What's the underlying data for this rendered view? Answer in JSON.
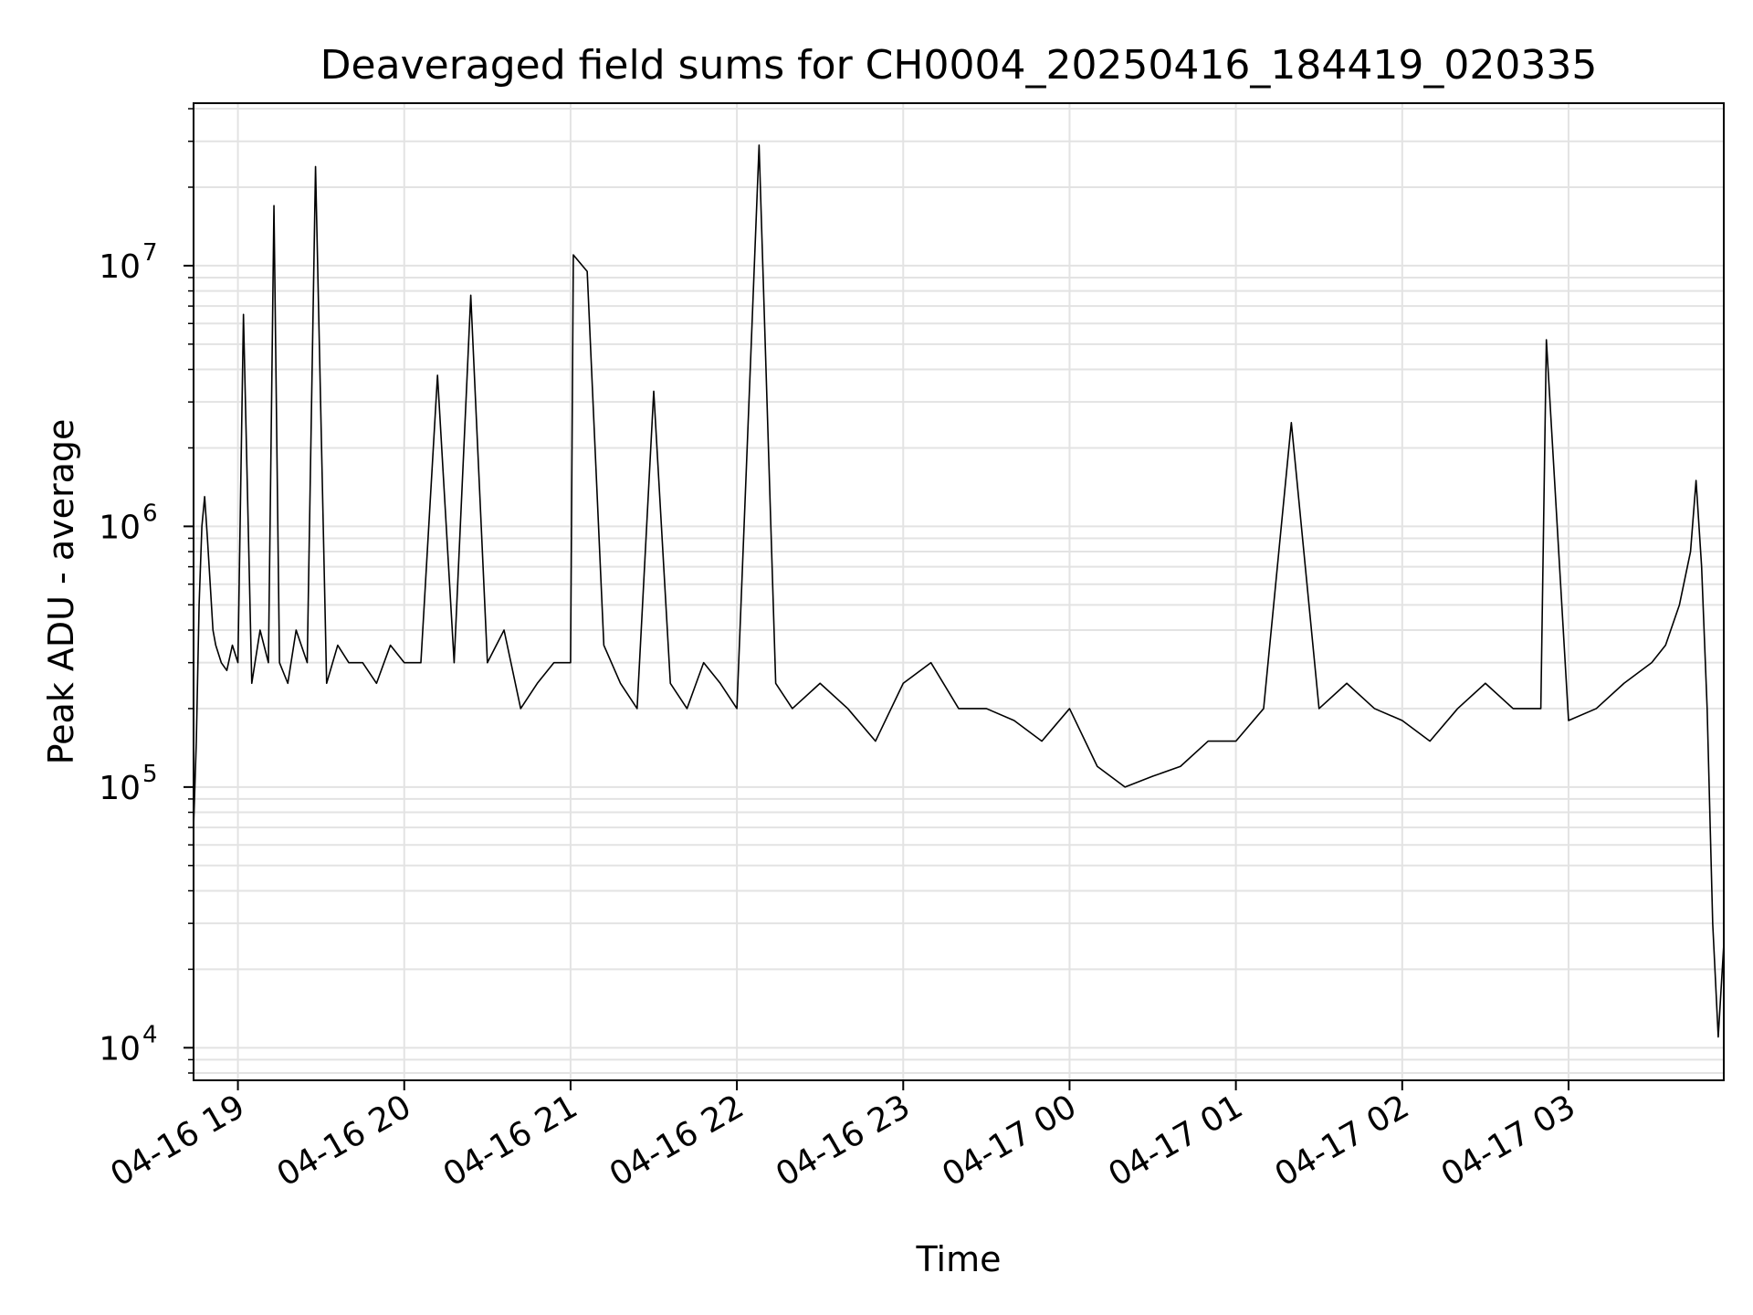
{
  "chart_data": {
    "type": "line",
    "title": "Deaveraged field sums for CH0004_20250416_184419_020335",
    "xlabel": "Time",
    "ylabel": "Peak ADU - average",
    "yscale": "log",
    "grid": true,
    "line_color": "#000000",
    "grid_color": "#e3e3e3",
    "xlim": [
      "2025-04-16 18:44",
      "2025-04-17 03:56"
    ],
    "ylim": [
      7500,
      42000000
    ],
    "x_ticks": [
      {
        "value": "2025-04-16 19:00",
        "label": "04-16 19"
      },
      {
        "value": "2025-04-16 20:00",
        "label": "04-16 20"
      },
      {
        "value": "2025-04-16 21:00",
        "label": "04-16 21"
      },
      {
        "value": "2025-04-16 22:00",
        "label": "04-16 22"
      },
      {
        "value": "2025-04-16 23:00",
        "label": "04-16 23"
      },
      {
        "value": "2025-04-17 00:00",
        "label": "04-17 00"
      },
      {
        "value": "2025-04-17 01:00",
        "label": "04-17 01"
      },
      {
        "value": "2025-04-17 02:00",
        "label": "04-17 02"
      },
      {
        "value": "2025-04-17 03:00",
        "label": "04-17 03"
      }
    ],
    "y_ticks": [
      {
        "value": 10000,
        "base": "10",
        "exp": "4"
      },
      {
        "value": 100000,
        "base": "10",
        "exp": "5"
      },
      {
        "value": 1000000,
        "base": "10",
        "exp": "6"
      },
      {
        "value": 10000000,
        "base": "10",
        "exp": "7"
      }
    ],
    "series": [
      {
        "x": [
          "2025-04-16 18:44",
          "2025-04-16 18:45",
          "2025-04-16 18:46",
          "2025-04-16 18:47",
          "2025-04-16 18:48",
          "2025-04-16 18:49",
          "2025-04-16 18:50",
          "2025-04-16 18:51",
          "2025-04-16 18:52",
          "2025-04-16 18:54",
          "2025-04-16 18:56",
          "2025-04-16 18:58",
          "2025-04-16 19:00",
          "2025-04-16 19:02",
          "2025-04-16 19:05",
          "2025-04-16 19:08",
          "2025-04-16 19:11",
          "2025-04-16 19:13",
          "2025-04-16 19:15",
          "2025-04-16 19:18",
          "2025-04-16 19:21",
          "2025-04-16 19:25",
          "2025-04-16 19:28",
          "2025-04-16 19:32",
          "2025-04-16 19:36",
          "2025-04-16 19:40",
          "2025-04-16 19:45",
          "2025-04-16 19:50",
          "2025-04-16 19:55",
          "2025-04-16 20:00",
          "2025-04-16 20:06",
          "2025-04-16 20:12",
          "2025-04-16 20:18",
          "2025-04-16 20:24",
          "2025-04-16 20:30",
          "2025-04-16 20:36",
          "2025-04-16 20:42",
          "2025-04-16 20:48",
          "2025-04-16 20:54",
          "2025-04-16 21:00",
          "2025-04-16 21:01",
          "2025-04-16 21:06",
          "2025-04-16 21:12",
          "2025-04-16 21:18",
          "2025-04-16 21:24",
          "2025-04-16 21:30",
          "2025-04-16 21:36",
          "2025-04-16 21:42",
          "2025-04-16 21:48",
          "2025-04-16 21:54",
          "2025-04-16 22:00",
          "2025-04-16 22:08",
          "2025-04-16 22:14",
          "2025-04-16 22:20",
          "2025-04-16 22:30",
          "2025-04-16 22:40",
          "2025-04-16 22:50",
          "2025-04-16 23:00",
          "2025-04-16 23:10",
          "2025-04-16 23:20",
          "2025-04-16 23:30",
          "2025-04-16 23:40",
          "2025-04-16 23:50",
          "2025-04-17 00:00",
          "2025-04-17 00:10",
          "2025-04-17 00:20",
          "2025-04-17 00:30",
          "2025-04-17 00:40",
          "2025-04-17 00:50",
          "2025-04-17 01:00",
          "2025-04-17 01:10",
          "2025-04-17 01:20",
          "2025-04-17 01:30",
          "2025-04-17 01:40",
          "2025-04-17 01:50",
          "2025-04-17 02:00",
          "2025-04-17 02:10",
          "2025-04-17 02:20",
          "2025-04-17 02:30",
          "2025-04-17 02:40",
          "2025-04-17 02:50",
          "2025-04-17 02:52",
          "2025-04-17 03:00",
          "2025-04-17 03:10",
          "2025-04-17 03:20",
          "2025-04-17 03:30",
          "2025-04-17 03:35",
          "2025-04-17 03:40",
          "2025-04-17 03:44",
          "2025-04-17 03:46",
          "2025-04-17 03:48",
          "2025-04-17 03:50",
          "2025-04-17 03:52",
          "2025-04-17 03:54",
          "2025-04-17 03:56"
        ],
        "y": [
          70000,
          150000,
          500000,
          1000000,
          1300000,
          900000,
          600000,
          400000,
          350000,
          300000,
          280000,
          350000,
          300000,
          6500000,
          250000,
          400000,
          300000,
          17000000,
          300000,
          250000,
          400000,
          300000,
          24000000,
          250000,
          350000,
          300000,
          300000,
          250000,
          350000,
          300000,
          300000,
          3800000,
          300000,
          7700000,
          300000,
          400000,
          200000,
          250000,
          300000,
          300000,
          11000000,
          9500000,
          350000,
          250000,
          200000,
          3300000,
          250000,
          200000,
          300000,
          250000,
          200000,
          29000000,
          250000,
          200000,
          250000,
          200000,
          150000,
          250000,
          300000,
          200000,
          200000,
          180000,
          150000,
          200000,
          120000,
          100000,
          110000,
          120000,
          150000,
          150000,
          200000,
          2500000,
          200000,
          250000,
          200000,
          180000,
          150000,
          200000,
          250000,
          200000,
          200000,
          5200000,
          180000,
          200000,
          250000,
          300000,
          350000,
          500000,
          800000,
          1500000,
          700000,
          200000,
          30000,
          11000,
          25000
        ]
      }
    ]
  }
}
